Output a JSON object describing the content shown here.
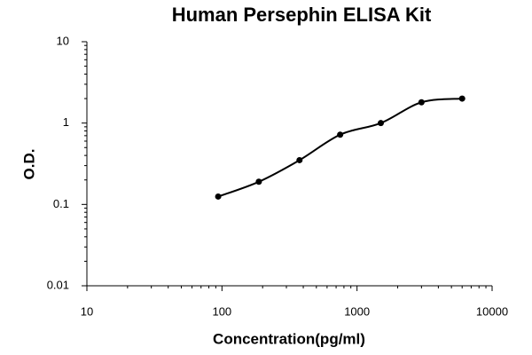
{
  "chart_data": {
    "type": "scatter",
    "title": "Human Persephin ELISA Kit",
    "x_label": "Concentration(pg/ml)",
    "y_label": "O.D.",
    "x": [
      93.75,
      187.5,
      375,
      750,
      1500,
      3000,
      6000
    ],
    "values": [
      0.125,
      0.19,
      0.35,
      0.72,
      1.0,
      1.8,
      2.0
    ],
    "color": "#000000",
    "xscale": "log",
    "yscale": "log",
    "xlim": [
      10,
      10000
    ],
    "ylim": [
      0.01,
      10
    ],
    "xticks": [
      10,
      100,
      1000,
      10000
    ],
    "yticks": [
      0.01,
      0.1,
      1,
      10
    ],
    "grid": false
  }
}
